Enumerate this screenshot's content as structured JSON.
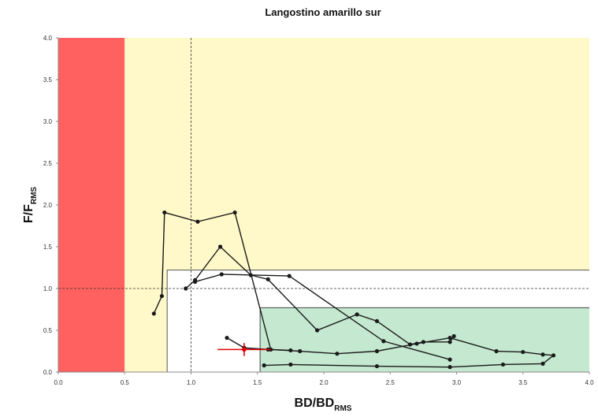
{
  "chart_data": {
    "type": "scatter",
    "title": "Langostino amarillo sur",
    "xlabel": {
      "main": "BD/BD",
      "sub": "RMS"
    },
    "ylabel": {
      "main": "F/F",
      "sub": "RMS"
    },
    "xlim": [
      0.0,
      4.0
    ],
    "ylim": [
      0.0,
      4.0
    ],
    "x_ticks": [
      "0.0",
      "0.5",
      "1.0",
      "1.5",
      "2.0",
      "2.5",
      "3.0",
      "3.5",
      "4.0"
    ],
    "y_ticks": [
      "0.0",
      "0.5",
      "1.0",
      "1.5",
      "2.0",
      "2.5",
      "3.0",
      "3.5",
      "4.0"
    ],
    "grid": false,
    "regions": [
      {
        "zone": "red",
        "color": "#ff6060",
        "x": [
          0.0,
          0.5
        ],
        "y": [
          0.0,
          4.0
        ]
      },
      {
        "zone": "yellow",
        "color": "#fff8c8",
        "x": [
          0.5,
          4.0
        ],
        "y": [
          0.0,
          4.0
        ]
      },
      {
        "zone": "white",
        "color": "#ffffff",
        "x": [
          0.82,
          4.0
        ],
        "y": [
          0.0,
          1.22
        ]
      },
      {
        "zone": "green",
        "color": "#c4e8d0",
        "x": [
          1.52,
          4.0
        ],
        "y": [
          0.0,
          0.77
        ]
      }
    ],
    "reference_lines": {
      "x": 1.0,
      "y": 1.0
    },
    "series": [
      {
        "color": "#1a1a1a",
        "points": [
          [
            0.72,
            0.7
          ],
          [
            0.78,
            0.91
          ],
          [
            0.8,
            1.91
          ],
          [
            1.05,
            1.8
          ],
          [
            1.33,
            1.91
          ],
          [
            1.6,
            0.27
          ],
          [
            1.82,
            0.25
          ],
          [
            2.1,
            0.22
          ],
          [
            2.4,
            0.25
          ],
          [
            2.7,
            0.34
          ],
          [
            2.95,
            0.41
          ],
          [
            3.3,
            0.25
          ],
          [
            3.5,
            0.24
          ],
          [
            3.65,
            0.21
          ],
          [
            3.73,
            0.2
          ],
          [
            3.65,
            0.1
          ],
          [
            3.35,
            0.09
          ],
          [
            2.95,
            0.06
          ],
          [
            2.4,
            0.07
          ],
          [
            1.75,
            0.09
          ],
          [
            1.55,
            0.08
          ]
        ]
      },
      {
        "color": "#1a1a1a",
        "points": [
          [
            1.27,
            0.41
          ],
          [
            1.4,
            0.29
          ],
          [
            1.58,
            0.27
          ],
          [
            1.75,
            0.26
          ]
        ]
      },
      {
        "color": "#1a1a1a",
        "points": [
          [
            0.96,
            1.0
          ],
          [
            1.03,
            1.1
          ],
          [
            1.22,
            1.5
          ],
          [
            1.45,
            1.16
          ],
          [
            1.58,
            1.11
          ],
          [
            1.95,
            0.5
          ],
          [
            2.25,
            0.69
          ],
          [
            2.4,
            0.61
          ],
          [
            2.65,
            0.33
          ],
          [
            2.75,
            0.36
          ],
          [
            2.95,
            0.36
          ],
          [
            2.98,
            0.43
          ]
        ]
      },
      {
        "color": "#1a1a1a",
        "points": [
          [
            1.03,
            1.08
          ],
          [
            1.23,
            1.17
          ],
          [
            1.74,
            1.15
          ],
          [
            2.45,
            0.37
          ],
          [
            2.95,
            0.15
          ]
        ]
      }
    ],
    "current_point": {
      "color": "#e00000",
      "x": 1.4,
      "y": 0.27,
      "x_error": [
        1.2,
        1.6
      ],
      "y_error": [
        0.23,
        0.31
      ]
    }
  }
}
